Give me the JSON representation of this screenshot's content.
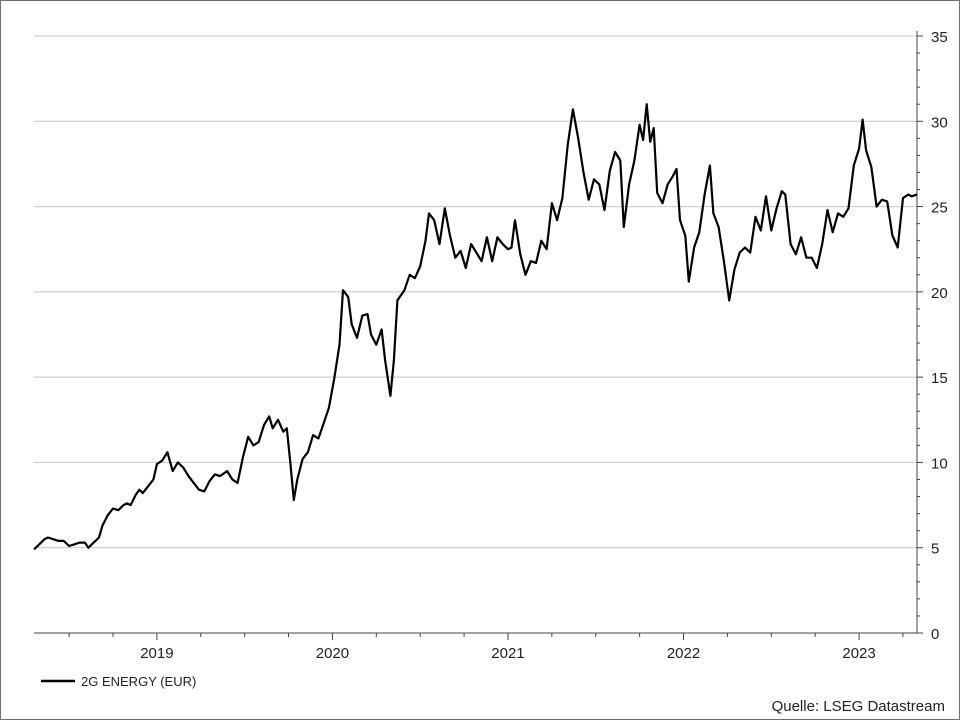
{
  "chart_data": {
    "type": "line",
    "title": "",
    "xlabel": "",
    "ylabel": "",
    "ylim": [
      0,
      35
    ],
    "y_ticks": [
      0,
      5,
      10,
      15,
      20,
      25,
      30,
      35
    ],
    "x_tick_labels": [
      {
        "year": 2019,
        "label": "2019"
      },
      {
        "year": 2020,
        "label": "2020"
      },
      {
        "year": 2021,
        "label": "2021"
      },
      {
        "year": 2022,
        "label": "2022"
      },
      {
        "year": 2023,
        "label": "2023"
      }
    ],
    "xlim": [
      2018.3,
      2023.33
    ],
    "grid": true,
    "legend_position": "bottom-left",
    "series": [
      {
        "name": "2G ENERGY (EUR)",
        "color": "#000000",
        "points": [
          [
            2018.3,
            4.9
          ],
          [
            2018.33,
            5.2
          ],
          [
            2018.36,
            5.5
          ],
          [
            2018.38,
            5.6
          ],
          [
            2018.41,
            5.5
          ],
          [
            2018.44,
            5.4
          ],
          [
            2018.47,
            5.4
          ],
          [
            2018.5,
            5.1
          ],
          [
            2018.53,
            5.2
          ],
          [
            2018.56,
            5.3
          ],
          [
            2018.59,
            5.3
          ],
          [
            2018.61,
            5.0
          ],
          [
            2018.64,
            5.3
          ],
          [
            2018.67,
            5.6
          ],
          [
            2018.69,
            6.3
          ],
          [
            2018.72,
            6.9
          ],
          [
            2018.75,
            7.3
          ],
          [
            2018.78,
            7.2
          ],
          [
            2018.81,
            7.5
          ],
          [
            2018.83,
            7.6
          ],
          [
            2018.85,
            7.5
          ],
          [
            2018.88,
            8.1
          ],
          [
            2018.9,
            8.4
          ],
          [
            2018.92,
            8.2
          ],
          [
            2018.95,
            8.6
          ],
          [
            2018.98,
            9.0
          ],
          [
            2019.0,
            9.9
          ],
          [
            2019.03,
            10.1
          ],
          [
            2019.06,
            10.6
          ],
          [
            2019.09,
            9.5
          ],
          [
            2019.12,
            10.0
          ],
          [
            2019.15,
            9.7
          ],
          [
            2019.18,
            9.2
          ],
          [
            2019.21,
            8.8
          ],
          [
            2019.24,
            8.4
          ],
          [
            2019.27,
            8.3
          ],
          [
            2019.3,
            8.9
          ],
          [
            2019.33,
            9.3
          ],
          [
            2019.36,
            9.2
          ],
          [
            2019.4,
            9.5
          ],
          [
            2019.43,
            9.0
          ],
          [
            2019.46,
            8.8
          ],
          [
            2019.49,
            10.3
          ],
          [
            2019.52,
            11.5
          ],
          [
            2019.55,
            11.0
          ],
          [
            2019.58,
            11.2
          ],
          [
            2019.61,
            12.2
          ],
          [
            2019.64,
            12.7
          ],
          [
            2019.66,
            12.0
          ],
          [
            2019.69,
            12.5
          ],
          [
            2019.72,
            11.8
          ],
          [
            2019.74,
            12.0
          ],
          [
            2019.76,
            10.0
          ],
          [
            2019.78,
            7.8
          ],
          [
            2019.8,
            9.0
          ],
          [
            2019.83,
            10.2
          ],
          [
            2019.86,
            10.6
          ],
          [
            2019.89,
            11.6
          ],
          [
            2019.92,
            11.4
          ],
          [
            2019.95,
            12.3
          ],
          [
            2019.98,
            13.2
          ],
          [
            2020.01,
            14.9
          ],
          [
            2020.04,
            16.9
          ],
          [
            2020.06,
            20.1
          ],
          [
            2020.09,
            19.7
          ],
          [
            2020.11,
            18.1
          ],
          [
            2020.14,
            17.3
          ],
          [
            2020.17,
            18.6
          ],
          [
            2020.2,
            18.7
          ],
          [
            2020.22,
            17.5
          ],
          [
            2020.25,
            16.9
          ],
          [
            2020.28,
            17.8
          ],
          [
            2020.3,
            16.0
          ],
          [
            2020.33,
            13.9
          ],
          [
            2020.35,
            16.0
          ],
          [
            2020.37,
            19.5
          ],
          [
            2020.41,
            20.1
          ],
          [
            2020.44,
            21.0
          ],
          [
            2020.47,
            20.8
          ],
          [
            2020.5,
            21.5
          ],
          [
            2020.53,
            23.0
          ],
          [
            2020.55,
            24.6
          ],
          [
            2020.58,
            24.2
          ],
          [
            2020.61,
            22.8
          ],
          [
            2020.64,
            24.9
          ],
          [
            2020.67,
            23.3
          ],
          [
            2020.7,
            22.0
          ],
          [
            2020.73,
            22.4
          ],
          [
            2020.76,
            21.4
          ],
          [
            2020.79,
            22.8
          ],
          [
            2020.82,
            22.3
          ],
          [
            2020.85,
            21.8
          ],
          [
            2020.88,
            23.2
          ],
          [
            2020.91,
            21.8
          ],
          [
            2020.94,
            23.2
          ],
          [
            2020.97,
            22.8
          ],
          [
            2021.0,
            22.5
          ],
          [
            2021.02,
            22.6
          ],
          [
            2021.04,
            24.2
          ],
          [
            2021.07,
            22.2
          ],
          [
            2021.1,
            21.0
          ],
          [
            2021.13,
            21.8
          ],
          [
            2021.16,
            21.7
          ],
          [
            2021.19,
            23.0
          ],
          [
            2021.22,
            22.5
          ],
          [
            2021.25,
            25.2
          ],
          [
            2021.28,
            24.2
          ],
          [
            2021.31,
            25.5
          ],
          [
            2021.34,
            28.6
          ],
          [
            2021.37,
            30.7
          ],
          [
            2021.4,
            29.0
          ],
          [
            2021.43,
            27.0
          ],
          [
            2021.46,
            25.4
          ],
          [
            2021.49,
            26.6
          ],
          [
            2021.52,
            26.3
          ],
          [
            2021.55,
            24.8
          ],
          [
            2021.58,
            27.1
          ],
          [
            2021.61,
            28.2
          ],
          [
            2021.64,
            27.7
          ],
          [
            2021.66,
            23.8
          ],
          [
            2021.69,
            26.3
          ],
          [
            2021.72,
            27.7
          ],
          [
            2021.75,
            29.8
          ],
          [
            2021.77,
            28.9
          ],
          [
            2021.79,
            31.0
          ],
          [
            2021.81,
            28.8
          ],
          [
            2021.83,
            29.6
          ],
          [
            2021.85,
            25.8
          ],
          [
            2021.88,
            25.2
          ],
          [
            2021.91,
            26.3
          ],
          [
            2021.94,
            26.8
          ],
          [
            2021.96,
            27.2
          ],
          [
            2021.98,
            24.2
          ],
          [
            2022.01,
            23.3
          ],
          [
            2022.03,
            20.6
          ],
          [
            2022.06,
            22.6
          ],
          [
            2022.09,
            23.5
          ],
          [
            2022.12,
            25.7
          ],
          [
            2022.15,
            27.4
          ],
          [
            2022.17,
            24.6
          ],
          [
            2022.2,
            23.8
          ],
          [
            2022.23,
            21.8
          ],
          [
            2022.26,
            19.5
          ],
          [
            2022.29,
            21.3
          ],
          [
            2022.32,
            22.3
          ],
          [
            2022.35,
            22.6
          ],
          [
            2022.38,
            22.3
          ],
          [
            2022.41,
            24.4
          ],
          [
            2022.44,
            23.6
          ],
          [
            2022.47,
            25.6
          ],
          [
            2022.5,
            23.6
          ],
          [
            2022.53,
            24.9
          ],
          [
            2022.56,
            25.9
          ],
          [
            2022.58,
            25.7
          ],
          [
            2022.61,
            22.8
          ],
          [
            2022.64,
            22.2
          ],
          [
            2022.67,
            23.2
          ],
          [
            2022.7,
            22.0
          ],
          [
            2022.73,
            22.0
          ],
          [
            2022.76,
            21.4
          ],
          [
            2022.79,
            22.8
          ],
          [
            2022.82,
            24.8
          ],
          [
            2022.85,
            23.5
          ],
          [
            2022.88,
            24.6
          ],
          [
            2022.91,
            24.4
          ],
          [
            2022.94,
            24.9
          ],
          [
            2022.97,
            27.4
          ],
          [
            2023.0,
            28.4
          ],
          [
            2023.02,
            30.1
          ],
          [
            2023.04,
            28.3
          ],
          [
            2023.07,
            27.3
          ],
          [
            2023.1,
            25.0
          ],
          [
            2023.13,
            25.4
          ],
          [
            2023.16,
            25.3
          ],
          [
            2023.19,
            23.3
          ],
          [
            2023.22,
            22.6
          ],
          [
            2023.25,
            25.5
          ],
          [
            2023.28,
            25.7
          ],
          [
            2023.3,
            25.6
          ],
          [
            2023.33,
            25.7
          ]
        ]
      }
    ]
  },
  "source_label": "Quelle: LSEG Datastream"
}
